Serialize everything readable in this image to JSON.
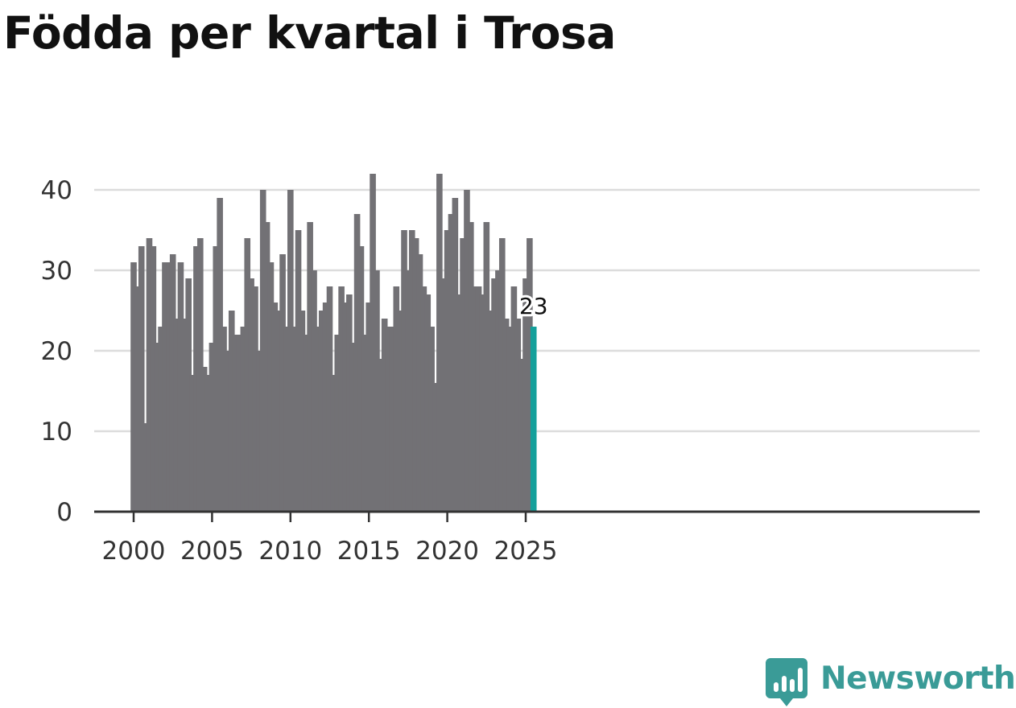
{
  "title": "Födda per kvartal i Trosa",
  "brand": {
    "name": "Newsworthy",
    "color": "#3a9b97"
  },
  "colors": {
    "bar": "#727175",
    "highlight": "#14a09b",
    "grid": "#dcdcdc",
    "axis": "#333333"
  },
  "chart_data": {
    "type": "bar",
    "title": "Födda per kvartal i Trosa",
    "xlabel": "",
    "ylabel": "",
    "ylim": [
      0,
      45
    ],
    "yticks": [
      0,
      10,
      20,
      30,
      40
    ],
    "xticks": [
      "2000",
      "2005",
      "2010",
      "2015",
      "2020",
      "2025"
    ],
    "grid": true,
    "start_year": 2000,
    "values": [
      31,
      28,
      33,
      11,
      34,
      33,
      21,
      23,
      31,
      31,
      32,
      24,
      31,
      24,
      29,
      17,
      33,
      34,
      18,
      17,
      21,
      33,
      39,
      23,
      20,
      25,
      22,
      22,
      23,
      34,
      29,
      28,
      20,
      40,
      36,
      31,
      26,
      25,
      32,
      23,
      40,
      23,
      35,
      25,
      22,
      36,
      30,
      23,
      25,
      26,
      28,
      17,
      22,
      28,
      26,
      27,
      21,
      37,
      33,
      22,
      26,
      42,
      30,
      19,
      24,
      23,
      23,
      28,
      25,
      35,
      30,
      35,
      34,
      32,
      28,
      27,
      23,
      16,
      42,
      29,
      35,
      37,
      39,
      27,
      34,
      40,
      36,
      28,
      28,
      27,
      36,
      25,
      29,
      30,
      34,
      24,
      23,
      28,
      24,
      19,
      29,
      34,
      23
    ],
    "highlight_last": true,
    "data_labels": [
      {
        "index": 102,
        "text": "23"
      }
    ]
  }
}
